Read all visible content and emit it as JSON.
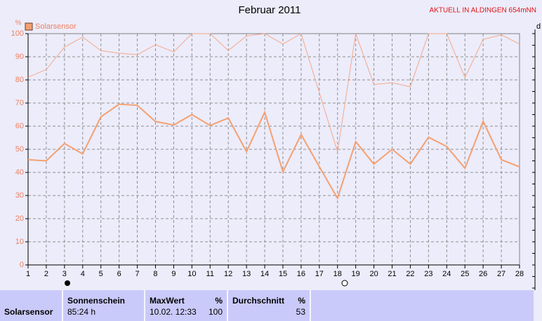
{
  "header": {
    "station": "AKTUELL IN ALDINGEN 654mNN"
  },
  "chart_data": {
    "type": "line",
    "title": "Februar 2011",
    "ylabel": "%",
    "y2label": "d",
    "x": [
      1,
      2,
      3,
      4,
      5,
      6,
      7,
      8,
      9,
      10,
      11,
      12,
      13,
      14,
      15,
      16,
      17,
      18,
      19,
      20,
      21,
      22,
      23,
      24,
      25,
      26,
      27,
      28
    ],
    "xlim": [
      1,
      28
    ],
    "xticks": [
      1,
      2,
      3,
      4,
      5,
      6,
      7,
      8,
      9,
      10,
      11,
      12,
      13,
      14,
      15,
      16,
      17,
      18,
      19,
      20,
      21,
      22,
      23,
      24,
      25,
      26,
      27,
      28
    ],
    "ylim": [
      0,
      100
    ],
    "yticks": [
      0,
      10,
      20,
      30,
      40,
      50,
      60,
      70,
      80,
      90,
      100
    ],
    "grid": true,
    "legend": "top-left",
    "series": [
      {
        "name": "Solarsensor",
        "color": "#f5a070",
        "width": 2,
        "values": [
          45.5,
          45,
          52.5,
          48,
          64,
          69.5,
          69,
          62,
          60.5,
          65,
          60.3,
          63.5,
          49,
          66,
          40.3,
          56.4,
          42.5,
          28.8,
          53.3,
          43.6,
          50,
          43.6,
          55.2,
          51.2,
          41.8,
          62.1,
          45.5,
          42.4
        ]
      },
      {
        "color": "#f5a888",
        "width": 1,
        "values": [
          81.2,
          84.5,
          94.2,
          98.5,
          92.7,
          91.5,
          90.9,
          95.2,
          92.1,
          100,
          100,
          92.7,
          99,
          100,
          95.5,
          100,
          74.5,
          49,
          100,
          78,
          78.8,
          77,
          100,
          100,
          81,
          97.5,
          99.5,
          95.5
        ]
      }
    ]
  },
  "summary": {
    "label": "Solarsensor",
    "cells": [
      {
        "title": "Sonnenschein",
        "value": "85:24 h"
      },
      {
        "title": "MaxWert",
        "unit": "%",
        "date": "10.02. 12:33",
        "value": "100"
      },
      {
        "title": "Durchschnitt",
        "unit": "%",
        "value": "53"
      }
    ]
  }
}
